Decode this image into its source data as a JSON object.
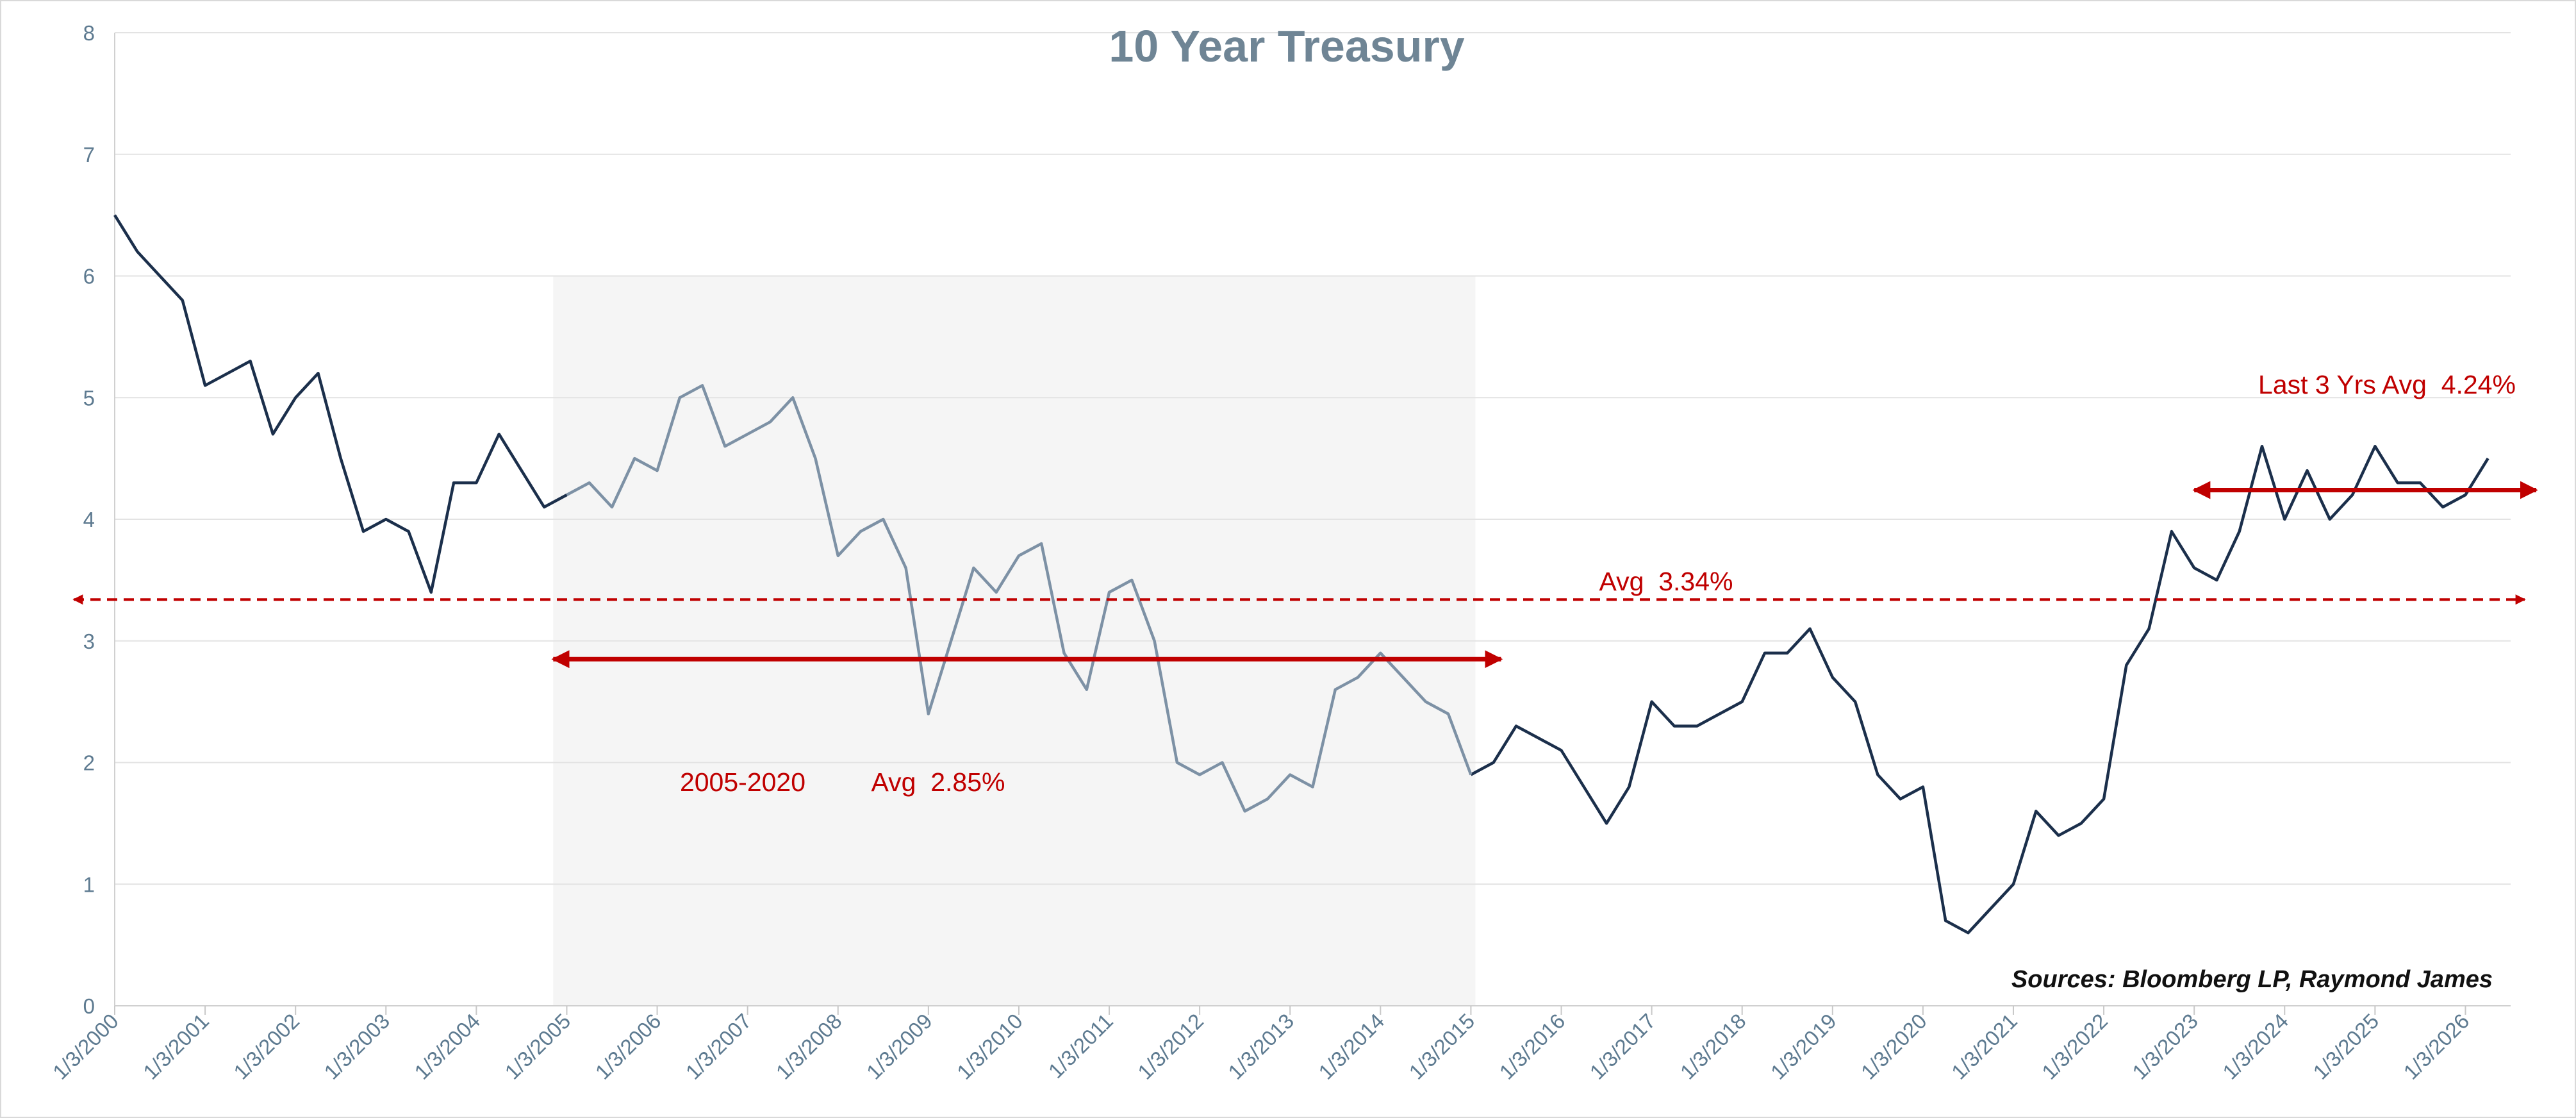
{
  "chart_data": {
    "type": "line",
    "title": "10 Year Treasury",
    "source": "Sources: Bloomberg LP, Raymond James",
    "x": [
      2000,
      2000.25,
      2000.5,
      2000.75,
      2001,
      2001.25,
      2001.5,
      2001.75,
      2002,
      2002.25,
      2002.5,
      2002.75,
      2003,
      2003.25,
      2003.5,
      2003.75,
      2004,
      2004.25,
      2004.5,
      2004.75,
      2005,
      2005.25,
      2005.5,
      2005.75,
      2006,
      2006.25,
      2006.5,
      2006.75,
      2007,
      2007.25,
      2007.5,
      2007.75,
      2008,
      2008.25,
      2008.5,
      2008.75,
      2009,
      2009.25,
      2009.5,
      2009.75,
      2010,
      2010.25,
      2010.5,
      2010.75,
      2011,
      2011.25,
      2011.5,
      2011.75,
      2012,
      2012.25,
      2012.5,
      2012.75,
      2013,
      2013.25,
      2013.5,
      2013.75,
      2014,
      2014.25,
      2014.5,
      2014.75,
      2015,
      2015.25,
      2015.5,
      2015.75,
      2016,
      2016.25,
      2016.5,
      2016.75,
      2017,
      2017.25,
      2017.5,
      2017.75,
      2018,
      2018.25,
      2018.5,
      2018.75,
      2019,
      2019.25,
      2019.5,
      2019.75,
      2020,
      2020.25,
      2020.5,
      2020.75,
      2021,
      2021.25,
      2021.5,
      2021.75,
      2022,
      2022.25,
      2022.5,
      2022.75,
      2023,
      2023.25,
      2023.5,
      2023.75,
      2024,
      2024.25,
      2024.5,
      2024.75,
      2025,
      2025.25,
      2025.5,
      2025.75,
      2026,
      2026.25
    ],
    "series": [
      {
        "color": "#1b2f4b",
        "values": [
          6.5,
          6.2,
          6.0,
          5.8,
          5.1,
          5.2,
          5.3,
          4.7,
          5.0,
          5.2,
          4.5,
          3.9,
          4.0,
          3.9,
          3.4,
          4.3,
          4.3,
          4.7,
          4.4,
          4.1,
          4.2,
          null,
          null,
          null,
          null,
          null,
          null,
          null,
          null,
          null,
          null,
          null,
          null,
          null,
          null,
          null,
          null,
          null,
          null,
          null,
          null,
          null,
          null,
          null,
          null,
          null,
          null,
          null,
          null,
          null,
          null,
          null,
          null,
          null,
          null,
          null,
          null,
          null,
          null,
          null,
          1.9,
          2.0,
          2.3,
          2.2,
          2.1,
          1.8,
          1.5,
          1.8,
          2.5,
          2.3,
          2.3,
          2.4,
          2.5,
          2.9,
          2.9,
          3.1,
          2.7,
          2.5,
          1.9,
          1.7,
          1.8,
          0.7,
          0.6,
          0.8,
          1.0,
          1.6,
          1.4,
          1.5,
          1.7,
          2.8,
          3.1,
          3.9,
          3.6,
          3.5,
          3.9,
          4.6,
          4.0,
          4.4,
          4.0,
          4.2,
          4.6,
          4.3,
          4.3,
          4.1,
          4.2,
          4.5
        ]
      },
      {
        "color": "#7d91a5",
        "values": [
          null,
          null,
          null,
          null,
          null,
          null,
          null,
          null,
          null,
          null,
          null,
          null,
          null,
          null,
          null,
          null,
          null,
          null,
          null,
          null,
          4.2,
          4.3,
          4.1,
          4.5,
          4.4,
          5.0,
          5.1,
          4.6,
          4.7,
          4.8,
          5.0,
          4.5,
          3.7,
          3.9,
          4.0,
          3.6,
          2.4,
          3.0,
          3.6,
          3.4,
          3.7,
          3.8,
          2.9,
          2.6,
          3.4,
          3.5,
          3.0,
          2.0,
          1.9,
          2.0,
          1.6,
          1.7,
          1.9,
          1.8,
          2.6,
          2.7,
          2.9,
          2.7,
          2.5,
          2.4,
          1.9,
          null,
          null,
          null,
          null,
          null,
          null,
          null,
          null,
          null,
          null,
          null,
          null,
          null,
          null,
          null,
          null,
          null,
          null,
          null,
          null,
          null,
          null,
          null,
          null,
          null,
          null,
          null,
          null,
          null,
          null,
          null,
          null,
          null,
          null,
          null,
          null,
          null,
          null,
          null,
          null,
          null,
          null,
          null,
          null,
          null
        ]
      }
    ],
    "xlim": [
      2000,
      2026.5
    ],
    "ylim": [
      0,
      8
    ],
    "yticks": [
      0,
      1,
      2,
      3,
      4,
      5,
      6,
      7,
      8
    ],
    "xticks": [
      {
        "value": 2000,
        "label": "1/3/2000"
      },
      {
        "value": 2001,
        "label": "1/3/2001"
      },
      {
        "value": 2002,
        "label": "1/3/2002"
      },
      {
        "value": 2003,
        "label": "1/3/2003"
      },
      {
        "value": 2004,
        "label": "1/3/2004"
      },
      {
        "value": 2005,
        "label": "1/3/2005"
      },
      {
        "value": 2006,
        "label": "1/3/2006"
      },
      {
        "value": 2007,
        "label": "1/3/2007"
      },
      {
        "value": 2008,
        "label": "1/3/2008"
      },
      {
        "value": 2009,
        "label": "1/3/2009"
      },
      {
        "value": 2010,
        "label": "1/3/2010"
      },
      {
        "value": 2011,
        "label": "1/3/2011"
      },
      {
        "value": 2012,
        "label": "1/3/2012"
      },
      {
        "value": 2013,
        "label": "1/3/2013"
      },
      {
        "value": 2014,
        "label": "1/3/2014"
      },
      {
        "value": 2015,
        "label": "1/3/2015"
      },
      {
        "value": 2016,
        "label": "1/3/2016"
      },
      {
        "value": 2017,
        "label": "1/3/2017"
      },
      {
        "value": 2018,
        "label": "1/3/2018"
      },
      {
        "value": 2019,
        "label": "1/3/2019"
      },
      {
        "value": 2020,
        "label": "1/3/2020"
      },
      {
        "value": 2021,
        "label": "1/3/2021"
      },
      {
        "value": 2022,
        "label": "1/3/2022"
      },
      {
        "value": 2023,
        "label": "1/3/2023"
      },
      {
        "value": 2024,
        "label": "1/3/2024"
      },
      {
        "value": 2025,
        "label": "1/3/2025"
      },
      {
        "value": 2026,
        "label": "1/3/2026"
      }
    ],
    "grid": true,
    "shade": {
      "from": 2004.85,
      "to": 2015.05,
      "top": 6
    },
    "references": [
      {
        "y": 3.34,
        "label": "Avg  3.34%",
        "color": "#c00000",
        "dashed": true
      },
      {
        "y": 2.85,
        "from": 2004.85,
        "to": 2015.05,
        "period": "2005-2020",
        "label": "Avg  2.85%",
        "color": "#c00000"
      },
      {
        "y": 4.24,
        "from": 2023.0,
        "to": 2026.5,
        "label": "Last 3 Yrs Avg  4.24%",
        "color": "#c00000"
      }
    ]
  }
}
